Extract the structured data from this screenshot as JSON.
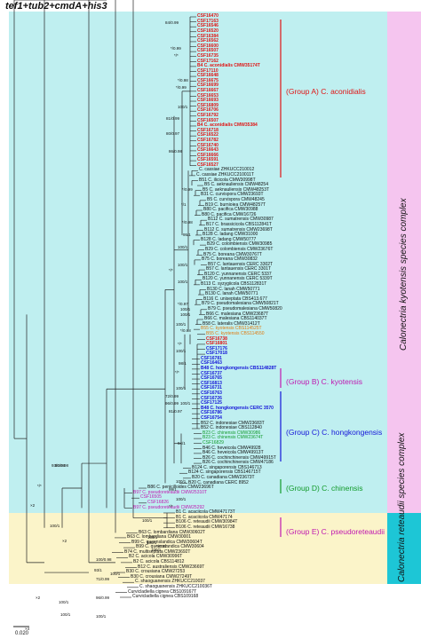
{
  "title": "tef1+tub2+cmdA+his3",
  "sidebands": {
    "kyotensis": "Calonectria kyotensis species complex",
    "reteaudii": "Calonectria reteaudii species complex"
  },
  "groups": [
    {
      "label": "(Group A) C. aconidialis",
      "color": "#e01414"
    },
    {
      "label": "(Group B) C. kyotensis",
      "color": "#c018b0"
    },
    {
      "label": "(Group C) C. hongkongensis",
      "color": "#1414d8"
    },
    {
      "label": "(Group D) C. chinensis",
      "color": "#129a2a"
    },
    {
      "label": "(Group E) C. pseudoreteaudii",
      "color": "#c018b0"
    }
  ],
  "tips": [
    {
      "t": "CSF16470",
      "c": "red"
    },
    {
      "t": "CSF17163",
      "c": "red"
    },
    {
      "t": "CSF16546",
      "c": "red"
    },
    {
      "t": "CSF16520",
      "c": "red"
    },
    {
      "t": "CSF16384",
      "c": "red"
    },
    {
      "t": "CSF16562",
      "c": "red"
    },
    {
      "t": "CSF16600",
      "c": "red"
    },
    {
      "t": "CSF16507",
      "c": "red"
    },
    {
      "t": "CSF16735",
      "c": "red"
    },
    {
      "t": "CSF17162",
      "c": "red"
    },
    {
      "t": "B4 C. aconidialis CMW35174T",
      "c": "red"
    },
    {
      "t": "CSF17110",
      "c": "red"
    },
    {
      "t": "CSF16648",
      "c": "red"
    },
    {
      "t": "CSF16675",
      "c": "red"
    },
    {
      "t": "CSF16699",
      "c": "red"
    },
    {
      "t": "CSF16667",
      "c": "red"
    },
    {
      "t": "CSF16653",
      "c": "red"
    },
    {
      "t": "CSF16693",
      "c": "red"
    },
    {
      "t": "CSF16809",
      "c": "red"
    },
    {
      "t": "CSF16706",
      "c": "red"
    },
    {
      "t": "CSF16792",
      "c": "red"
    },
    {
      "t": "CSF16507",
      "c": "red"
    },
    {
      "t": "B4 C. aconidialis CMW35384",
      "c": "red"
    },
    {
      "t": "CSF16718",
      "c": "red"
    },
    {
      "t": "CSF16522",
      "c": "red"
    },
    {
      "t": "CSF16782",
      "c": "red"
    },
    {
      "t": "CSF16740",
      "c": "red"
    },
    {
      "t": "CSF16643",
      "c": "red"
    },
    {
      "t": "CSF16666",
      "c": "red"
    },
    {
      "t": "CSF16591",
      "c": "red"
    },
    {
      "t": "CSF16527",
      "c": "red"
    },
    {
      "t": "C. cassiae ZHKUCC210012",
      "c": "black"
    },
    {
      "t": "C. cassiae ZHKUCC210011T",
      "c": "black"
    },
    {
      "t": "B51 C. ilicicola CMW30998T",
      "c": "black"
    },
    {
      "t": "B5 C. aeknauliensis CMW48254",
      "c": "black"
    },
    {
      "t": "B5 C. aeknauliensis CMW48253T",
      "c": "black"
    },
    {
      "t": "B31 C. curvispora CMW23693T",
      "c": "black"
    },
    {
      "t": "B5 C. curvispora CMW48245",
      "c": "black"
    },
    {
      "t": "B19 C. burnioiea CMW48257T",
      "c": "black"
    },
    {
      "t": "B80 C. pacifica CMW30988",
      "c": "black"
    },
    {
      "t": "B80 C. pacifica CMW16726",
      "c": "black"
    },
    {
      "t": "B112 C. sumatrensis CMW30987",
      "c": "black"
    },
    {
      "t": "B17 C. brassicicola CBS112841T",
      "c": "black"
    },
    {
      "t": "B112 C. sumatrensis CMW23698T",
      "c": "black"
    },
    {
      "t": "B128 C. ladang CMW31000",
      "c": "black"
    },
    {
      "t": "B128 C. ladang CMW50777",
      "c": "black"
    },
    {
      "t": "B29 C. colombiensis CMW30985",
      "c": "black"
    },
    {
      "t": "B29 C. colombiensis CMW23676T",
      "c": "black"
    },
    {
      "t": "B75 C. boreana CMW30767T",
      "c": "black"
    },
    {
      "t": "B75 C. boreana CMW30832",
      "c": "black"
    },
    {
      "t": "B57 C. lantauensis CERC 3302T",
      "c": "black"
    },
    {
      "t": "B57 C. lantauensis CERC 3301T",
      "c": "black"
    },
    {
      "t": "B120 C. yunnanensis CERC 5337",
      "c": "black"
    },
    {
      "t": "B120 C. yunnanensis CERC 5339T",
      "c": "black"
    },
    {
      "t": "B113 C. syzygiicola CBS112831T",
      "c": "black"
    },
    {
      "t": "B130 C. lanah CMW50771",
      "c": "black"
    },
    {
      "t": "B130 C. lanah CMW50771",
      "c": "black"
    },
    {
      "t": "B116 C. uniseptata CBS413.677",
      "c": "black"
    },
    {
      "t": "B79 C. pseudomalesiana CMW50821T",
      "c": "black"
    },
    {
      "t": "B79 C. pseudomalesiana CMW50820",
      "c": "black"
    },
    {
      "t": "B66 C. malesiana CMW23687T",
      "c": "black"
    },
    {
      "t": "B66 C. malesiana CBS114037T",
      "c": "black"
    },
    {
      "t": "B58 C. lateralis CMW31412T",
      "c": "black"
    },
    {
      "t": "B55 C. kyotensis CBS114525T",
      "c": "orange"
    },
    {
      "t": "B55 C. kyotensis CBS114550",
      "c": "orange"
    },
    {
      "t": "CSF16738",
      "c": "red"
    },
    {
      "t": "CSF16801",
      "c": "red"
    },
    {
      "t": "CSF17176",
      "c": "blue"
    },
    {
      "t": "CSF17018",
      "c": "blue"
    },
    {
      "t": "CSF16781",
      "c": "blue"
    },
    {
      "t": "CSF16463",
      "c": "blue"
    },
    {
      "t": "B48 C. hongkongensis CBS114828T",
      "c": "blue"
    },
    {
      "t": "CSF16737",
      "c": "blue"
    },
    {
      "t": "CSF16765",
      "c": "blue"
    },
    {
      "t": "CSF16813",
      "c": "blue"
    },
    {
      "t": "CSF16731",
      "c": "blue"
    },
    {
      "t": "CSF16763",
      "c": "blue"
    },
    {
      "t": "CSF16726",
      "c": "blue"
    },
    {
      "t": "CSF17125",
      "c": "blue"
    },
    {
      "t": "B48 C. hongkongensis CERC 3570",
      "c": "blue"
    },
    {
      "t": "CSF16786",
      "c": "blue"
    },
    {
      "t": "CSF16754",
      "c": "blue"
    },
    {
      "t": "B52 C. indonesiae CMW23683T",
      "c": "black"
    },
    {
      "t": "B52 C. indonesiae CBS112840",
      "c": "black"
    },
    {
      "t": "B23 C. chinensis CMW30986",
      "c": "green"
    },
    {
      "t": "B23 C. chinensis CMW23674T",
      "c": "green"
    },
    {
      "t": "CSF16829",
      "c": "green"
    },
    {
      "t": "B46 C. heveicola CMW49928",
      "c": "black"
    },
    {
      "t": "B46 C. heveicola CMW49913T",
      "c": "black"
    },
    {
      "t": "B26 C. cochinchinensis CMW49915T",
      "c": "black"
    },
    {
      "t": "B26 C. cochinchinensis CMW47186",
      "c": "black"
    },
    {
      "t": "B124 C. singaporensis CBS146713",
      "c": "black"
    },
    {
      "t": "B124 C. singaporensis CBS146715T",
      "c": "black"
    },
    {
      "t": "B20 C. canadiana CMW23673T",
      "c": "black"
    },
    {
      "t": "B20 C. canadiana CERC 8952",
      "c": "black"
    },
    {
      "t": "B86 C. penicilloides CMW23696T",
      "c": "black"
    },
    {
      "t": "B97 C. pseudoreteaudii CMW25310T",
      "c": "magenta"
    },
    {
      "t": "CSF16505",
      "c": "magenta"
    },
    {
      "t": "CSF16826",
      "c": "magenta"
    },
    {
      "t": "B97 C. pseudoreteaudii CMW25292",
      "c": "magenta"
    },
    {
      "t": "B1 C. acaciicola CMW47173T",
      "c": "black"
    },
    {
      "t": "B1 C. acaciicola CMW47174",
      "c": "black"
    },
    {
      "t": "B106 C. reteaudii CMW30984T",
      "c": "black"
    },
    {
      "t": "B106 C. reteaudii CMW16738",
      "c": "black"
    },
    {
      "t": "B63 C. lombardiana CMW30602T",
      "c": "black"
    },
    {
      "t": "B63 C. lombardiana CMW30001",
      "c": "black"
    },
    {
      "t": "B99 C. queenslandica CMW30604T",
      "c": "black"
    },
    {
      "t": "B99 C. queenslandica CMW30604",
      "c": "black"
    },
    {
      "t": "B74 C. multiseptata CMW23692T",
      "c": "black"
    },
    {
      "t": "B2 C. acicola CMW30996T",
      "c": "black"
    },
    {
      "t": "B2 C. acicola CBS114812",
      "c": "black"
    },
    {
      "t": "B12 C. australiensis CMW23669T",
      "c": "black"
    },
    {
      "t": "B30 C. crousiana CMW27253",
      "c": "black"
    },
    {
      "t": "B30 C. crousiana CMW27249T",
      "c": "black"
    },
    {
      "t": "C. shaoguanensis ZHKUCC210037",
      "c": "black"
    },
    {
      "t": "C. shaoguanensis ZHKUCC210036T",
      "c": "black"
    },
    {
      "t": "Curvicladiella cignea CBS109167T",
      "c": "black"
    },
    {
      "t": "Curvicladiella cignea CBS109168",
      "c": "black"
    }
  ],
  "supports": [
    {
      "t": "84/0.99"
    },
    {
      "t": "*/0.99"
    },
    {
      "t": "*/*"
    },
    {
      "t": "*/0.98"
    },
    {
      "t": "*/0.99"
    },
    {
      "t": "100/1"
    },
    {
      "t": "81/0.99"
    },
    {
      "t": "80/0.97"
    },
    {
      "t": "86/0.98"
    },
    {
      "t": "*/0.99"
    },
    {
      "t": "*/1"
    },
    {
      "t": "*/0.98"
    },
    {
      "t": "95/1"
    },
    {
      "t": "100/1"
    },
    {
      "t": "100/1"
    },
    {
      "t": "*/*"
    },
    {
      "t": "100/1"
    },
    {
      "t": "*/0.97"
    },
    {
      "t": "100/1"
    },
    {
      "t": "100/1"
    },
    {
      "t": "100/1"
    },
    {
      "t": "*/0.98"
    },
    {
      "t": "*/*"
    },
    {
      "t": "100/1"
    },
    {
      "t": "98/1"
    },
    {
      "t": "93/0.98"
    },
    {
      "t": "100/1"
    },
    {
      "t": "100/1"
    },
    {
      "t": "72/0.99"
    },
    {
      "t": "96/0.99"
    },
    {
      "t": "81/0.97"
    },
    {
      "t": "*/*"
    },
    {
      "t": "94/1"
    },
    {
      "t": "100/1"
    },
    {
      "t": "99/1"
    },
    {
      "t": "100/1"
    },
    {
      "t": "*/*"
    },
    {
      "t": "93/0.98"
    },
    {
      "t": "100/1"
    },
    {
      "t": "*/*"
    },
    {
      "t": "100/1"
    },
    {
      "t": "100/1"
    },
    {
      "t": "100/1"
    },
    {
      "t": "*/0.97"
    },
    {
      "t": "100/1"
    },
    {
      "t": "100/0.98"
    },
    {
      "t": "100/1"
    },
    {
      "t": "93/1"
    },
    {
      "t": "71/0.99"
    },
    {
      "t": "96/0.99"
    },
    {
      "t": "100/1"
    },
    {
      "t": "100/1"
    },
    {
      "t": "100/1"
    },
    {
      "t": "×2"
    },
    {
      "t": "×2"
    },
    {
      "t": "×2"
    },
    {
      "t": "×4"
    }
  ],
  "scale": "0.020"
}
